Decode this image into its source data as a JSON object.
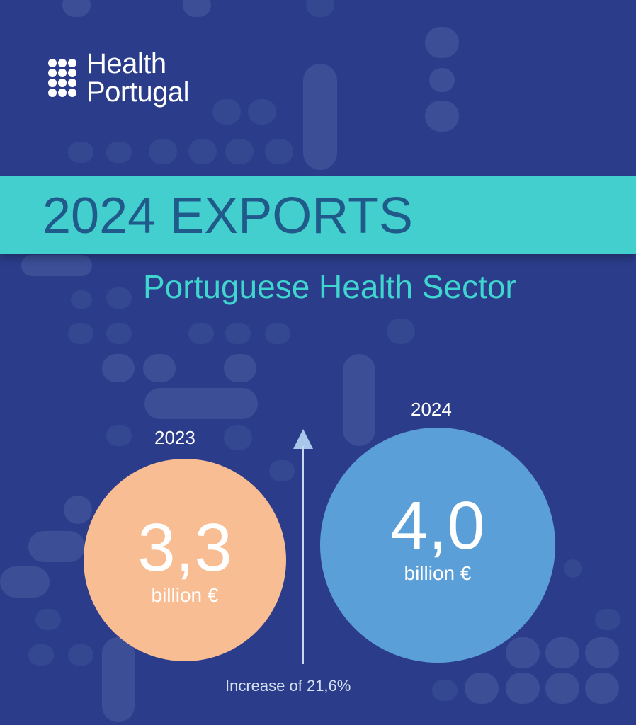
{
  "brand": {
    "line1": "Health",
    "line2": "Portugal"
  },
  "banner": {
    "title": "2024 EXPORTS"
  },
  "subtitle": "Portuguese Health Sector",
  "figures": [
    {
      "year": "2023",
      "value": "3,3",
      "unit": "billion €",
      "color": "#f8bd93"
    },
    {
      "year": "2024",
      "value": "4,0",
      "unit": "billion €",
      "color": "#5b9fd8"
    }
  ],
  "increase_label": "Increase of 21,6%",
  "colors": {
    "background": "#2b3d8a",
    "banner": "#44cfcf",
    "banner_text": "#205a8a",
    "subtitle": "#3fd6cf"
  }
}
